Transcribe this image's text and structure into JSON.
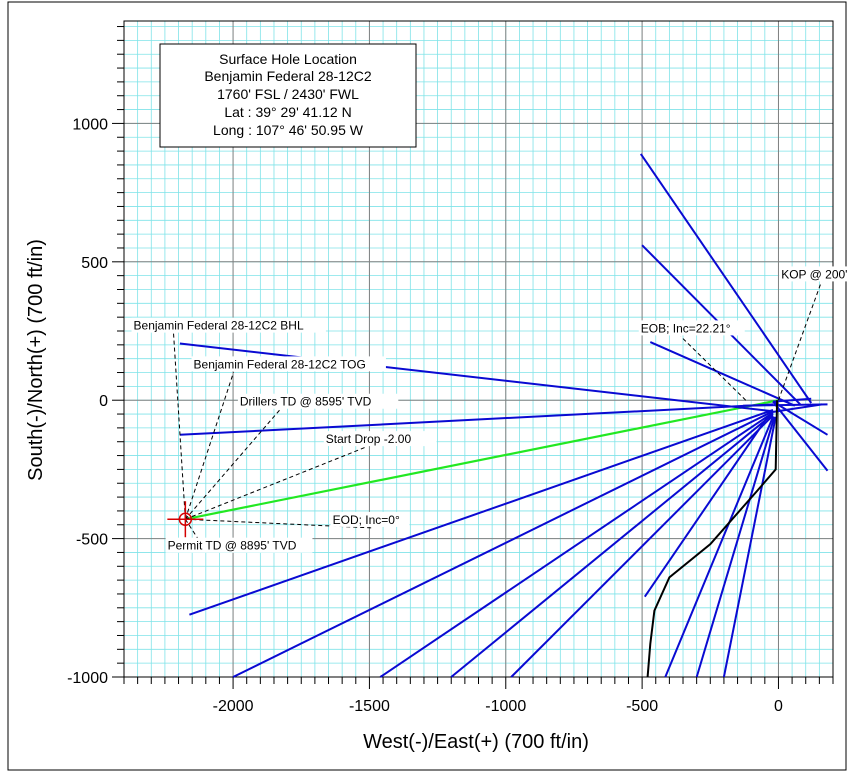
{
  "chart_data": {
    "type": "line",
    "xlabel": "West(-)/East(+) (700 ft/in)",
    "ylabel": "South(-)/North(+) (700 ft/in)",
    "xlim": [
      -2400,
      200
    ],
    "ylim": [
      -1000,
      1370
    ],
    "x_ticks": [
      -2000,
      -1500,
      -1000,
      -500,
      0
    ],
    "x_tick_labels": [
      "-2000",
      "-1500",
      "-1000",
      "-500",
      "0"
    ],
    "y_ticks": [
      1000,
      500,
      0,
      -500,
      -1000
    ],
    "y_tick_labels": [
      "1000",
      "500",
      "0",
      "-500",
      "-1000"
    ],
    "grid": true,
    "colors": {
      "wellpath": "#22e822",
      "offset_wells": "#0a0ad2",
      "offset_black": "#000000",
      "minor_grid": "#7fe3e8",
      "major_grid": "#808080",
      "target": "#d40000"
    },
    "legend_box": {
      "lines": [
        "Surface Hole Location",
        "Benjamin Federal 28-12C2",
        "1760' FSL / 2430' FWL",
        "Lat :  39° 29' 41.12 N",
        "Long :  107° 46' 50.95 W"
      ]
    },
    "annotations": [
      {
        "text": "KOP @ 200'",
        "point": [
          0,
          0
        ],
        "label_at": [
          10,
          440
        ]
      },
      {
        "text": "EOB; Inc=22.21°",
        "point": [
          -120,
          0
        ],
        "label_at": [
          -505,
          245
        ]
      },
      {
        "text": "Benjamin Federal 28-12C2 BHL",
        "point": [
          -2175,
          -430
        ],
        "label_at": [
          -2365,
          255
        ]
      },
      {
        "text": "Benjamin Federal 28-12C2 TOG",
        "point": [
          -2175,
          -430
        ],
        "label_at": [
          -2145,
          115
        ]
      },
      {
        "text": "Drillers TD @ 8595' TVD",
        "point": [
          -2175,
          -430
        ],
        "label_at": [
          -1975,
          -20
        ]
      },
      {
        "text": "Start Drop -2.00",
        "point": [
          -2175,
          -430
        ],
        "label_at": [
          -1660,
          -155
        ]
      },
      {
        "text": "EOD; Inc=0°",
        "point": [
          -2175,
          -430
        ],
        "label_at": [
          -1635,
          -447
        ]
      },
      {
        "text": "Permit TD @ 8895' TVD",
        "point": [
          -2175,
          -430
        ],
        "label_at": [
          -2240,
          -540
        ]
      }
    ],
    "series": [
      {
        "color": "wellpath",
        "points": [
          [
            0,
            0
          ],
          [
            -2175,
            -430
          ]
        ]
      },
      {
        "color": "offset_wells",
        "points": [
          [
            -2195,
            205
          ],
          [
            -20,
            -40
          ]
        ]
      },
      {
        "color": "offset_wells",
        "points": [
          [
            -2195,
            -125
          ],
          [
            -20,
            -15
          ]
        ]
      },
      {
        "color": "offset_wells",
        "points": [
          [
            -2160,
            -775
          ],
          [
            -20,
            -35
          ]
        ]
      },
      {
        "color": "offset_wells",
        "points": [
          [
            -2000,
            -1000
          ],
          [
            -20,
            -40
          ]
        ]
      },
      {
        "color": "offset_wells",
        "points": [
          [
            -1460,
            -1000
          ],
          [
            -20,
            -45
          ]
        ]
      },
      {
        "color": "offset_wells",
        "points": [
          [
            -1200,
            -1000
          ],
          [
            -20,
            -50
          ]
        ]
      },
      {
        "color": "offset_wells",
        "points": [
          [
            -980,
            -1000
          ],
          [
            -20,
            -55
          ]
        ]
      },
      {
        "color": "offset_wells",
        "points": [
          [
            -505,
            890
          ],
          [
            120,
            -10
          ]
        ]
      },
      {
        "color": "offset_wells",
        "points": [
          [
            -500,
            560
          ],
          [
            80,
            -15
          ]
        ]
      },
      {
        "color": "offset_wells",
        "points": [
          [
            -470,
            210
          ],
          [
            60,
            -20
          ]
        ]
      },
      {
        "color": "offset_wells",
        "points": [
          [
            -490,
            -710
          ],
          [
            -40,
            -60
          ]
        ]
      },
      {
        "color": "offset_wells",
        "points": [
          [
            -415,
            -1000
          ],
          [
            -20,
            -60
          ]
        ]
      },
      {
        "color": "offset_wells",
        "points": [
          [
            -300,
            -1000
          ],
          [
            -15,
            -60
          ]
        ]
      },
      {
        "color": "offset_wells",
        "points": [
          [
            -200,
            -1000
          ],
          [
            -10,
            -60
          ]
        ]
      },
      {
        "color": "offset_wells",
        "points": [
          [
            -130,
            -20
          ],
          [
            180,
            -15
          ]
        ]
      },
      {
        "color": "offset_wells",
        "points": [
          [
            -40,
            -45
          ],
          [
            160,
            -15
          ]
        ]
      },
      {
        "color": "offset_wells",
        "points": [
          [
            -20,
            -5
          ],
          [
            180,
            -125
          ]
        ]
      },
      {
        "color": "offset_wells",
        "points": [
          [
            -20,
            -5
          ],
          [
            180,
            -255
          ]
        ]
      },
      {
        "color": "offset_wells",
        "points": [
          [
            -20,
            -5
          ],
          [
            120,
            5
          ]
        ]
      },
      {
        "color": "offset_black",
        "points": [
          [
            -480,
            -1000
          ],
          [
            -470,
            -880
          ],
          [
            -455,
            -760
          ],
          [
            -400,
            -640
          ],
          [
            -250,
            -520
          ],
          [
            -80,
            -330
          ],
          [
            -10,
            -250
          ],
          [
            -5,
            0
          ]
        ]
      }
    ]
  }
}
